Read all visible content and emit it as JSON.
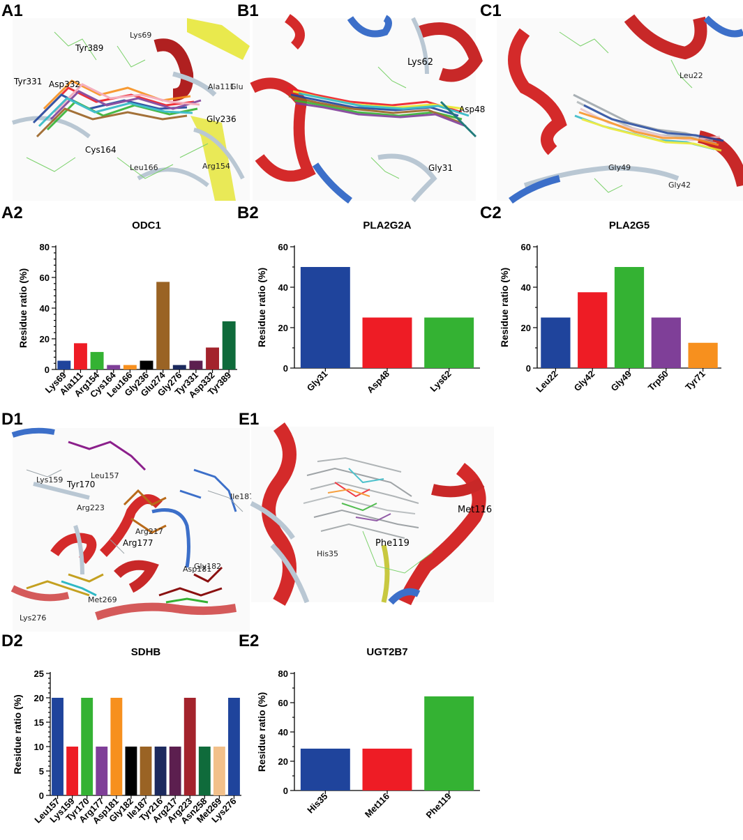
{
  "panel_labels": {
    "a1": "A1",
    "b1": "B1",
    "c1": "C1",
    "a2": "A2",
    "b2": "B2",
    "c2": "C2",
    "d1": "D1",
    "e1": "E1",
    "d2": "D2",
    "e2": "E2"
  },
  "structure_labels": {
    "a1": [
      "Lys69",
      "Tyr389",
      "Tyr331",
      "Asp332",
      "Ala111",
      "Glu",
      "Gly236",
      "Cys164",
      "Leu166",
      "Arg154"
    ],
    "b1": [
      "Lys62",
      "Asp48",
      "Gly31"
    ],
    "c1": [
      "Leu22",
      "Gly49",
      "Gly42"
    ],
    "d1": [
      "Lys159",
      "Tyr170",
      "Leu157",
      "Ile187",
      "Arg223",
      "Arg217",
      "Arg177",
      "Asp181",
      "Gly182",
      "Met269",
      "Lys276"
    ],
    "e1": [
      "Met116",
      "Phe119",
      "His35"
    ]
  },
  "colors": {
    "blue": "#1f449c",
    "red": "#ee1c25",
    "green": "#34b233",
    "purple": "#7f3f98",
    "orange": "#f7901e",
    "black": "#000000",
    "brown": "#9a6324",
    "navy": "#1c2a5e",
    "plum": "#5c1f4f",
    "darkred": "#a3232c",
    "darkgreen": "#0f6b3b",
    "tan": "#f2c08a"
  },
  "chart_data": [
    {
      "id": "odc1",
      "type": "bar",
      "title": "ODC1",
      "ylabel": "Residue ratio (%)",
      "ylim": [
        0,
        80
      ],
      "yticks": [
        0,
        20,
        40,
        60,
        80
      ],
      "minor": 5,
      "rot": true,
      "categories": [
        "Lys69",
        "Ala111",
        "Arg154",
        "Cys164",
        "Leu166",
        "Gly236",
        "Glu274",
        "Gly276",
        "Tyr331",
        "Asp332",
        "Tyr389"
      ],
      "values": [
        5.7,
        17.1,
        11.4,
        2.9,
        2.9,
        5.7,
        57.1,
        2.9,
        5.7,
        14.3,
        31.4
      ],
      "bar_colors": [
        "#1f449c",
        "#ee1c25",
        "#34b233",
        "#7f3f98",
        "#f7901e",
        "#000000",
        "#9a6324",
        "#1c2a5e",
        "#5c1f4f",
        "#a3232c",
        "#0f6b3b"
      ]
    },
    {
      "id": "pla2g2a",
      "type": "bar",
      "title": "PLA2G2A",
      "ylabel": "Residue ratio (%)",
      "ylim": [
        0,
        60
      ],
      "yticks": [
        0,
        20,
        40,
        60
      ],
      "minor": 2,
      "rot": true,
      "categories": [
        "Gly31",
        "Asp48",
        "Lys62"
      ],
      "values": [
        50,
        25,
        25
      ],
      "bar_colors": [
        "#1f449c",
        "#ee1c25",
        "#34b233"
      ]
    },
    {
      "id": "pla2g5",
      "type": "bar",
      "title": "PLA2G5",
      "ylabel": "Residue ratio (%)",
      "ylim": [
        0,
        60
      ],
      "yticks": [
        0,
        20,
        40,
        60
      ],
      "minor": 2,
      "rot": true,
      "categories": [
        "Leu22",
        "Gly42",
        "Gly49",
        "Trp50",
        "Tyr71"
      ],
      "values": [
        25,
        37.5,
        50,
        25,
        12.5
      ],
      "bar_colors": [
        "#1f449c",
        "#ee1c25",
        "#34b233",
        "#7f3f98",
        "#f7901e"
      ]
    },
    {
      "id": "sdhb",
      "type": "bar",
      "title": "SDHB",
      "ylabel": "Residue ratio (%)",
      "ylim": [
        0,
        25
      ],
      "yticks": [
        0,
        5,
        10,
        15,
        20,
        25
      ],
      "minor": 5,
      "rot": true,
      "categories": [
        "Leu157",
        "Lys159",
        "Tyr170",
        "Arg177",
        "Asp181",
        "Gly182",
        "Ile187",
        "Tyr216",
        "Arg217",
        "Arg223",
        "Asn258",
        "Met269",
        "Lys276"
      ],
      "values": [
        20,
        10,
        20,
        10,
        20,
        10,
        10,
        10,
        10,
        20,
        10,
        10,
        20
      ],
      "bar_colors": [
        "#1f449c",
        "#ee1c25",
        "#34b233",
        "#7f3f98",
        "#f7901e",
        "#000000",
        "#9a6324",
        "#1c2a5e",
        "#5c1f4f",
        "#a3232c",
        "#0f6b3b",
        "#f2c08a",
        "#1f449c"
      ]
    },
    {
      "id": "ugt2b7",
      "type": "bar",
      "title": "UGT2B7",
      "ylabel": "Residue ratio (%)",
      "ylim": [
        0,
        80
      ],
      "yticks": [
        0,
        20,
        40,
        60,
        80
      ],
      "minor": 2,
      "rot": true,
      "categories": [
        "His35",
        "Met116",
        "Phe119"
      ],
      "values": [
        28.6,
        28.6,
        64.3
      ],
      "bar_colors": [
        "#1f449c",
        "#ee1c25",
        "#34b233"
      ]
    }
  ]
}
